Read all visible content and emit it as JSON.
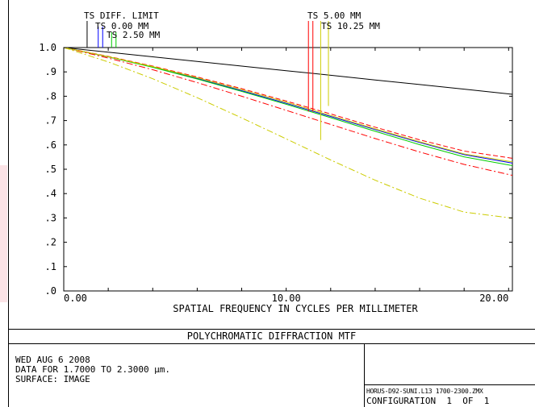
{
  "chart_data": {
    "type": "line",
    "title": "POLYCHROMATIC DIFFRACTION MTF",
    "xlabel": "SPATIAL FREQUENCY IN CYCLES PER MILLIMETER",
    "ylabel": "",
    "xlim": [
      0,
      20.17
    ],
    "ylim": [
      0,
      1.0
    ],
    "x_tick_labels": [
      {
        "value": 0,
        "label": "0.00"
      },
      {
        "value": 10,
        "label": "10.00"
      },
      {
        "value": 20,
        "label": "20.00"
      }
    ],
    "y_tick_labels": [
      {
        "value": 1.0,
        "label": "1.0"
      },
      {
        "value": 0.9,
        "label": ".9"
      },
      {
        "value": 0.8,
        "label": ".8"
      },
      {
        "value": 0.7,
        "label": ".7"
      },
      {
        "value": 0.6,
        "label": ".6"
      },
      {
        "value": 0.5,
        "label": ".5"
      },
      {
        "value": 0.4,
        "label": ".4"
      },
      {
        "value": 0.3,
        "label": ".3"
      },
      {
        "value": 0.2,
        "label": ".2"
      },
      {
        "value": 0.1,
        "label": ".1"
      },
      {
        "value": 0.0,
        "label": ".0"
      }
    ],
    "x": [
      0,
      2,
      4,
      6,
      8,
      10,
      12,
      14,
      16,
      18,
      20.17
    ],
    "series": [
      {
        "name": "TS DIFF. LIMIT",
        "color": "#000000",
        "dash": "solid",
        "values": [
          1.0,
          0.981,
          0.962,
          0.943,
          0.924,
          0.905,
          0.886,
          0.867,
          0.848,
          0.829,
          0.808
        ]
      },
      {
        "name": "TS 0.00 MM",
        "color": "#0000ff",
        "dash": "solid",
        "values": [
          1.0,
          0.962,
          0.92,
          0.873,
          0.823,
          0.771,
          0.717,
          0.663,
          0.61,
          0.56,
          0.525
        ]
      },
      {
        "name": "TS 2.50 MM",
        "color": "#00cc00",
        "dash": "solid",
        "values": [
          1.0,
          0.962,
          0.919,
          0.871,
          0.82,
          0.767,
          0.712,
          0.656,
          0.601,
          0.551,
          0.515
        ]
      },
      {
        "name": "TS 5.00 MM",
        "color": "#ff0000",
        "dash": "dashed",
        "values": [
          1.0,
          0.964,
          0.924,
          0.879,
          0.831,
          0.78,
          0.727,
          0.673,
          0.621,
          0.575,
          0.545
        ]
      },
      {
        "name": "TS 5.00 MM",
        "color": "#ff0000",
        "dash": "dashdot",
        "values": [
          1.0,
          0.957,
          0.909,
          0.856,
          0.8,
          0.742,
          0.684,
          0.626,
          0.571,
          0.52,
          0.475
        ]
      },
      {
        "name": "TS 10.25 MM",
        "color": "#cccc00",
        "dash": "solid",
        "values": [
          1.0,
          0.963,
          0.922,
          0.876,
          0.827,
          0.775,
          0.721,
          0.666,
          0.613,
          0.563,
          0.53
        ]
      },
      {
        "name": "TS 10.25 MM",
        "color": "#cccc00",
        "dash": "dashdot",
        "values": [
          1.0,
          0.941,
          0.872,
          0.794,
          0.711,
          0.625,
          0.538,
          0.455,
          0.381,
          0.324,
          0.299
        ]
      }
    ],
    "legend_markers": [
      {
        "label": "TS DIFF. LIMIT",
        "color": "#000000",
        "x": 1.05,
        "bottom": 1.0
      },
      {
        "label": "TS 0.00 MM",
        "color": "#0000ff",
        "x": 1.55,
        "bottom": 1.0
      },
      {
        "label": "TS 0.00 MM",
        "color": "#0000ff",
        "x": 1.75,
        "bottom": 1.0
      },
      {
        "label": "TS 2.50 MM",
        "color": "#00cc00",
        "x": 2.15,
        "bottom": 1.0
      },
      {
        "label": "TS 2.50 MM",
        "color": "#00cc00",
        "x": 2.35,
        "bottom": 1.0
      },
      {
        "label": "TS 5.00 MM",
        "color": "#ff0000",
        "x": 11.0,
        "bottom": 0.737
      },
      {
        "label": "TS 5.00 MM",
        "color": "#ff0000",
        "x": 11.2,
        "bottom": 0.737
      },
      {
        "label": "TS 10.25 MM",
        "color": "#cccc00",
        "x": 11.55,
        "bottom": 0.62
      },
      {
        "label": "TS 10.25 MM",
        "color": "#cccc00",
        "x": 11.9,
        "bottom": 0.76
      }
    ],
    "legend_texts": [
      {
        "text": "TS DIFF. LIMIT"
      },
      {
        "text": "TS 0.00 MM"
      },
      {
        "text": "TS 2.50 MM"
      },
      {
        "text": "TS 5.00 MM"
      },
      {
        "text": "TS 10.25 MM"
      }
    ],
    "grid": false
  },
  "footer": {
    "title": "POLYCHROMATIC DIFFRACTION MTF",
    "date": "WED AUG 6 2008",
    "data_range": "DATA FOR 1.7000 TO 2.3000 µm.",
    "surface": "SURFACE: IMAGE",
    "filename": "HORUS-D92-SUNI.L13 1700-2300.ZMX",
    "configuration": "CONFIGURATION  1  OF  1"
  }
}
